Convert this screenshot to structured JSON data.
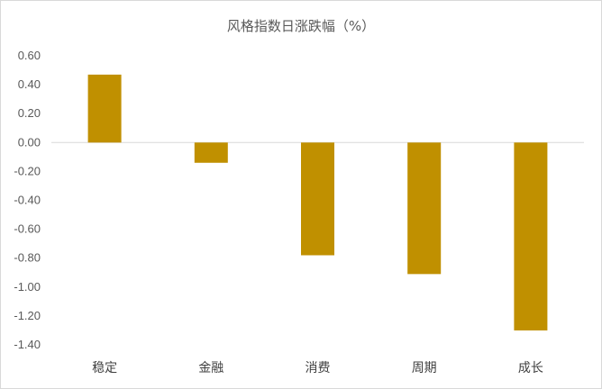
{
  "chart_data": {
    "type": "bar",
    "title": "风格指数日涨跌幅（%）",
    "categories": [
      "稳定",
      "金融",
      "消费",
      "周期",
      "成长"
    ],
    "values": [
      0.47,
      -0.14,
      -0.78,
      -0.91,
      -1.3
    ],
    "ylim": [
      -1.4,
      0.6
    ],
    "yticks": [
      "0.60",
      "0.40",
      "0.20",
      "0.00",
      "-0.20",
      "-0.40",
      "-0.60",
      "-0.80",
      "-1.00",
      "-1.20",
      "-1.40"
    ],
    "xlabel": "",
    "ylabel": "",
    "grid": false,
    "legend": "none",
    "bar_color": "#C09000",
    "axis_color": "#d9d9d9"
  }
}
